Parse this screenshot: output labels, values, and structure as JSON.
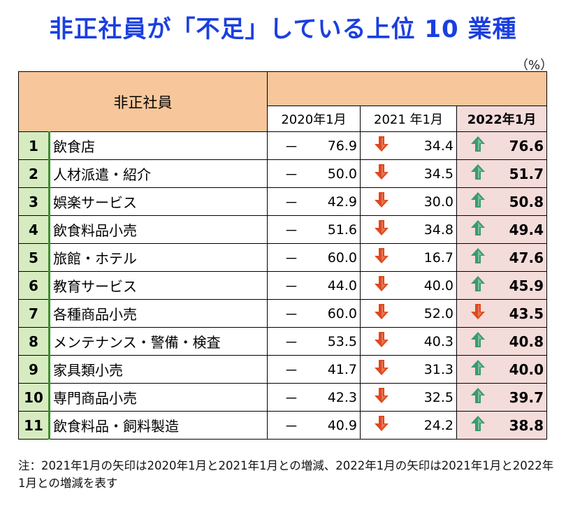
{
  "title": "非正社員が「不足」している上位 10 業種",
  "unit": "（%）",
  "table_header": "非正社員",
  "columns": [
    "2020年1月",
    "2021 年1月",
    "2022年1月"
  ],
  "note": "注：2021年1月の矢印は2020年1月と2021年1月との増減、2022年1月の矢印は2021年1月と2022年1月との増減を表す",
  "colors": {
    "title": "#1a3fe0",
    "header_bg": "#f7c79b",
    "rank_bg": "#d6ecc0",
    "highlight_bg": "#f3dcda",
    "up_arrow": "#3a9a6e",
    "down_arrow": "#e0481e"
  },
  "chart_data": {
    "type": "table",
    "columns": [
      "2020年1月",
      "2021 年1月",
      "2022年1月"
    ],
    "rows": [
      {
        "rank": "1",
        "industry": "飲食店",
        "y2020": "76.9",
        "y2021": "34.4",
        "y2021_arrow": "down",
        "y2022": "76.6",
        "y2022_arrow": "up"
      },
      {
        "rank": "2",
        "industry": "人材派遣・紹介",
        "y2020": "50.0",
        "y2021": "34.5",
        "y2021_arrow": "down",
        "y2022": "51.7",
        "y2022_arrow": "up"
      },
      {
        "rank": "3",
        "industry": "娯楽サービス",
        "y2020": "42.9",
        "y2021": "30.0",
        "y2021_arrow": "down",
        "y2022": "50.8",
        "y2022_arrow": "up"
      },
      {
        "rank": "4",
        "industry": "飲食料品小売",
        "y2020": "51.6",
        "y2021": "34.8",
        "y2021_arrow": "down",
        "y2022": "49.4",
        "y2022_arrow": "up"
      },
      {
        "rank": "5",
        "industry": "旅館・ホテル",
        "y2020": "60.0",
        "y2021": "16.7",
        "y2021_arrow": "down",
        "y2022": "47.6",
        "y2022_arrow": "up"
      },
      {
        "rank": "6",
        "industry": "教育サービス",
        "y2020": "44.0",
        "y2021": "40.0",
        "y2021_arrow": "down",
        "y2022": "45.9",
        "y2022_arrow": "up"
      },
      {
        "rank": "7",
        "industry": "各種商品小売",
        "y2020": "60.0",
        "y2021": "52.0",
        "y2021_arrow": "down",
        "y2022": "43.5",
        "y2022_arrow": "down"
      },
      {
        "rank": "8",
        "industry": "メンテナンス・警備・検査",
        "y2020": "53.5",
        "y2021": "40.3",
        "y2021_arrow": "down",
        "y2022": "40.8",
        "y2022_arrow": "up"
      },
      {
        "rank": "9",
        "industry": "家具類小売",
        "y2020": "41.7",
        "y2021": "31.3",
        "y2021_arrow": "down",
        "y2022": "40.0",
        "y2022_arrow": "up"
      },
      {
        "rank": "10",
        "industry": "専門商品小売",
        "y2020": "42.3",
        "y2021": "32.5",
        "y2021_arrow": "down",
        "y2022": "39.7",
        "y2022_arrow": "up"
      },
      {
        "rank": "11",
        "industry": "飲食料品・飼料製造",
        "y2020": "40.9",
        "y2021": "24.2",
        "y2021_arrow": "down",
        "y2022": "38.8",
        "y2022_arrow": "up"
      }
    ]
  }
}
